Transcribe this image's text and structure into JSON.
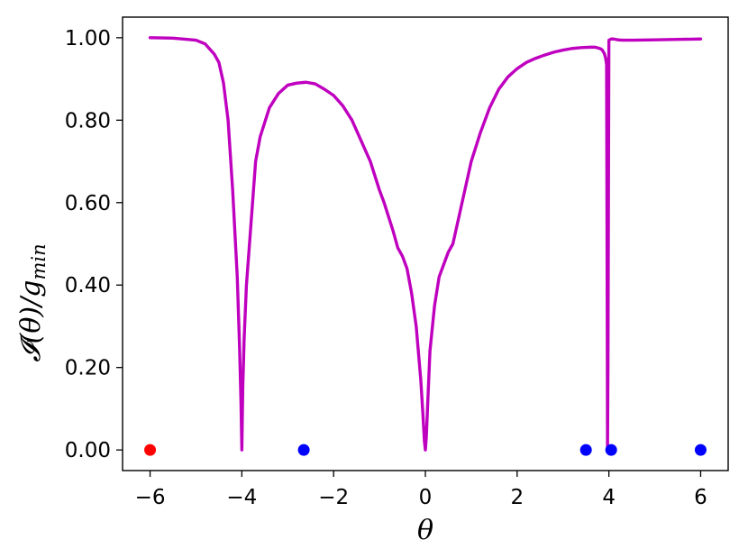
{
  "chart_data": {
    "type": "line",
    "xlabel": "θ",
    "ylabel": {
      "main": "𝓘(θ)/g",
      "subscript": "min"
    },
    "xlim": [
      -6.6,
      6.6
    ],
    "ylim": [
      -0.05,
      1.05
    ],
    "xticks": [
      -6,
      -4,
      -2,
      0,
      2,
      4,
      6
    ],
    "xtick_labels": [
      "−6",
      "−4",
      "−2",
      "0",
      "2",
      "4",
      "6"
    ],
    "yticks": [
      0,
      0.2,
      0.4,
      0.6,
      0.8,
      1.0
    ],
    "ytick_labels": [
      "0.00",
      "0.20",
      "0.40",
      "0.60",
      "0.80",
      "1.00"
    ],
    "grid": false,
    "colors": {
      "curve": "#bf00bf",
      "marker_red": "#ff0000",
      "marker_blue": "#0000ff"
    },
    "series": [
      {
        "x": [
          -6.0,
          -5.5,
          -5.0,
          -4.8,
          -4.6,
          -4.5,
          -4.4,
          -4.3,
          -4.2,
          -4.1,
          -4.05,
          -4.02,
          -4.0,
          -3.98,
          -3.95,
          -3.9,
          -3.8,
          -3.7,
          -3.6,
          -3.4,
          -3.2,
          -3.0,
          -2.8,
          -2.6,
          -2.4,
          -2.2,
          -2.0,
          -1.8,
          -1.6,
          -1.4,
          -1.2,
          -1.0,
          -0.9,
          -0.8,
          -0.7,
          -0.6,
          -0.5,
          -0.4,
          -0.3,
          -0.2,
          -0.1,
          -0.05,
          -0.02,
          0.0,
          0.02,
          0.05,
          0.1,
          0.2,
          0.3,
          0.4,
          0.5,
          0.6,
          0.8,
          1.0,
          1.2,
          1.4,
          1.6,
          1.8,
          2.0,
          2.2,
          2.4,
          2.6,
          2.8,
          3.0,
          3.2,
          3.4,
          3.6,
          3.7,
          3.8,
          3.85,
          3.9,
          3.93,
          3.95,
          3.96,
          3.97,
          3.98,
          3.99,
          4.0,
          4.05,
          4.1,
          4.2,
          4.3,
          4.5,
          5.0,
          5.5,
          6.0
        ],
        "values": [
          1.0,
          0.999,
          0.994,
          0.985,
          0.96,
          0.94,
          0.89,
          0.8,
          0.63,
          0.42,
          0.25,
          0.12,
          0.0,
          0.15,
          0.27,
          0.4,
          0.55,
          0.7,
          0.76,
          0.83,
          0.865,
          0.885,
          0.89,
          0.892,
          0.888,
          0.875,
          0.86,
          0.835,
          0.8,
          0.75,
          0.7,
          0.63,
          0.6,
          0.565,
          0.53,
          0.49,
          0.47,
          0.44,
          0.38,
          0.3,
          0.17,
          0.08,
          0.02,
          0.0,
          0.03,
          0.11,
          0.24,
          0.35,
          0.42,
          0.45,
          0.48,
          0.5,
          0.6,
          0.7,
          0.77,
          0.83,
          0.875,
          0.905,
          0.925,
          0.94,
          0.95,
          0.958,
          0.965,
          0.97,
          0.974,
          0.976,
          0.977,
          0.977,
          0.974,
          0.971,
          0.962,
          0.95,
          0.935,
          0.5,
          0.0,
          0.2,
          0.6,
          0.994,
          0.997,
          0.997,
          0.995,
          0.994,
          0.994,
          0.995,
          0.996,
          0.997
        ]
      },
      {
        "x": [
          -6.0
        ],
        "values": [
          0.0
        ]
      },
      {
        "x": [
          -2.65,
          3.5,
          4.05,
          6.0
        ],
        "values": [
          0.0,
          0.0,
          0.0,
          0.0
        ]
      }
    ]
  }
}
